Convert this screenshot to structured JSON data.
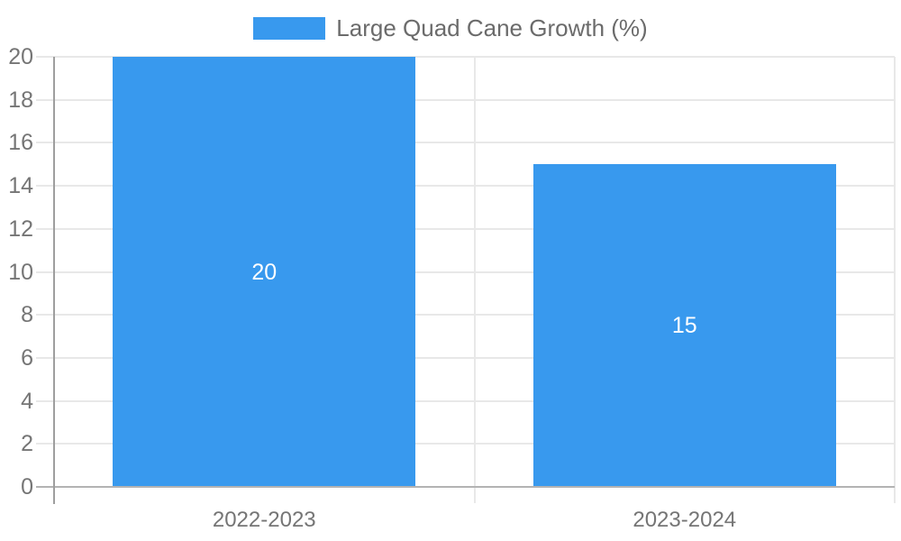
{
  "chart_data": {
    "type": "bar",
    "title": "",
    "legend_label": "Large Quad Cane Growth (%)",
    "legend_position": "top",
    "categories": [
      "2022-2023",
      "2023-2024"
    ],
    "series": [
      {
        "name": "Large Quad Cane Growth (%)",
        "values": [
          20,
          15
        ]
      }
    ],
    "value_labels": [
      "20",
      "15"
    ],
    "ylim": [
      0,
      20
    ],
    "ytick_step": 2,
    "yticks": [
      0,
      2,
      4,
      6,
      8,
      10,
      12,
      14,
      16,
      18,
      20
    ],
    "grid": true,
    "bar_slot_fraction": 0.72,
    "colors": {
      "bar": "#3899ee",
      "tick_label": "#757575",
      "legend_text": "#6b6b6b",
      "gridline": "#e8e8e8",
      "axis_line": "#9e9e9e",
      "baseline": "#b3b3b3",
      "value_label": "#ffffff",
      "background": "#ffffff"
    }
  }
}
